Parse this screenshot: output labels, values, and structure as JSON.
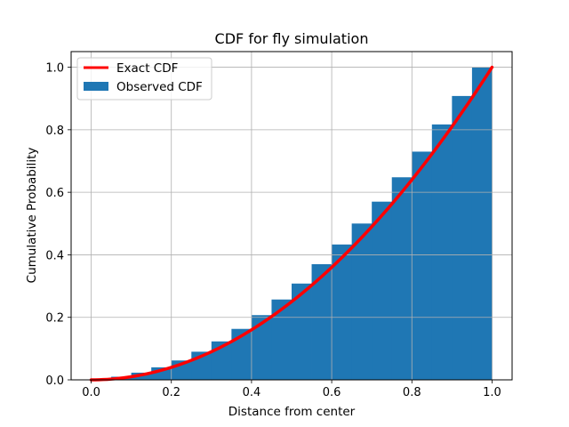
{
  "chart_data": {
    "type": "bar",
    "title": "CDF for fly simulation",
    "xlabel": "Distance from center",
    "ylabel": "Cumulative Probability",
    "xlim": [
      -0.05,
      1.05
    ],
    "ylim": [
      0,
      1.05
    ],
    "xticks": [
      "0.0",
      "0.2",
      "0.4",
      "0.6",
      "0.8",
      "1.0"
    ],
    "yticks": [
      "0.0",
      "0.2",
      "0.4",
      "0.6",
      "0.8",
      "1.0"
    ],
    "grid": true,
    "legend_position": "upper-left",
    "series": [
      {
        "name": "Exact CDF",
        "kind": "line",
        "color": "#ff0000",
        "formula": "x^2",
        "x": [
          0.0,
          0.05,
          0.1,
          0.15,
          0.2,
          0.25,
          0.3,
          0.35,
          0.4,
          0.45,
          0.5,
          0.55,
          0.6,
          0.65,
          0.7,
          0.75,
          0.8,
          0.85,
          0.9,
          0.95,
          1.0
        ],
        "y": [
          0.0,
          0.0025,
          0.01,
          0.0225,
          0.04,
          0.0625,
          0.09,
          0.1225,
          0.16,
          0.2025,
          0.25,
          0.3025,
          0.36,
          0.4225,
          0.49,
          0.5625,
          0.64,
          0.7225,
          0.81,
          0.9025,
          1.0
        ]
      },
      {
        "name": "Observed CDF",
        "kind": "histogram",
        "color": "#1f77b4",
        "bin_edges": [
          0.0,
          0.05,
          0.1,
          0.15,
          0.2,
          0.25,
          0.3,
          0.35,
          0.4,
          0.45,
          0.5,
          0.55,
          0.6,
          0.65,
          0.7,
          0.75,
          0.8,
          0.85,
          0.9,
          0.95,
          1.0
        ],
        "values": [
          0.002,
          0.01,
          0.023,
          0.04,
          0.062,
          0.09,
          0.123,
          0.163,
          0.207,
          0.257,
          0.308,
          0.37,
          0.433,
          0.5,
          0.57,
          0.648,
          0.73,
          0.817,
          0.908,
          1.0
        ]
      }
    ]
  }
}
